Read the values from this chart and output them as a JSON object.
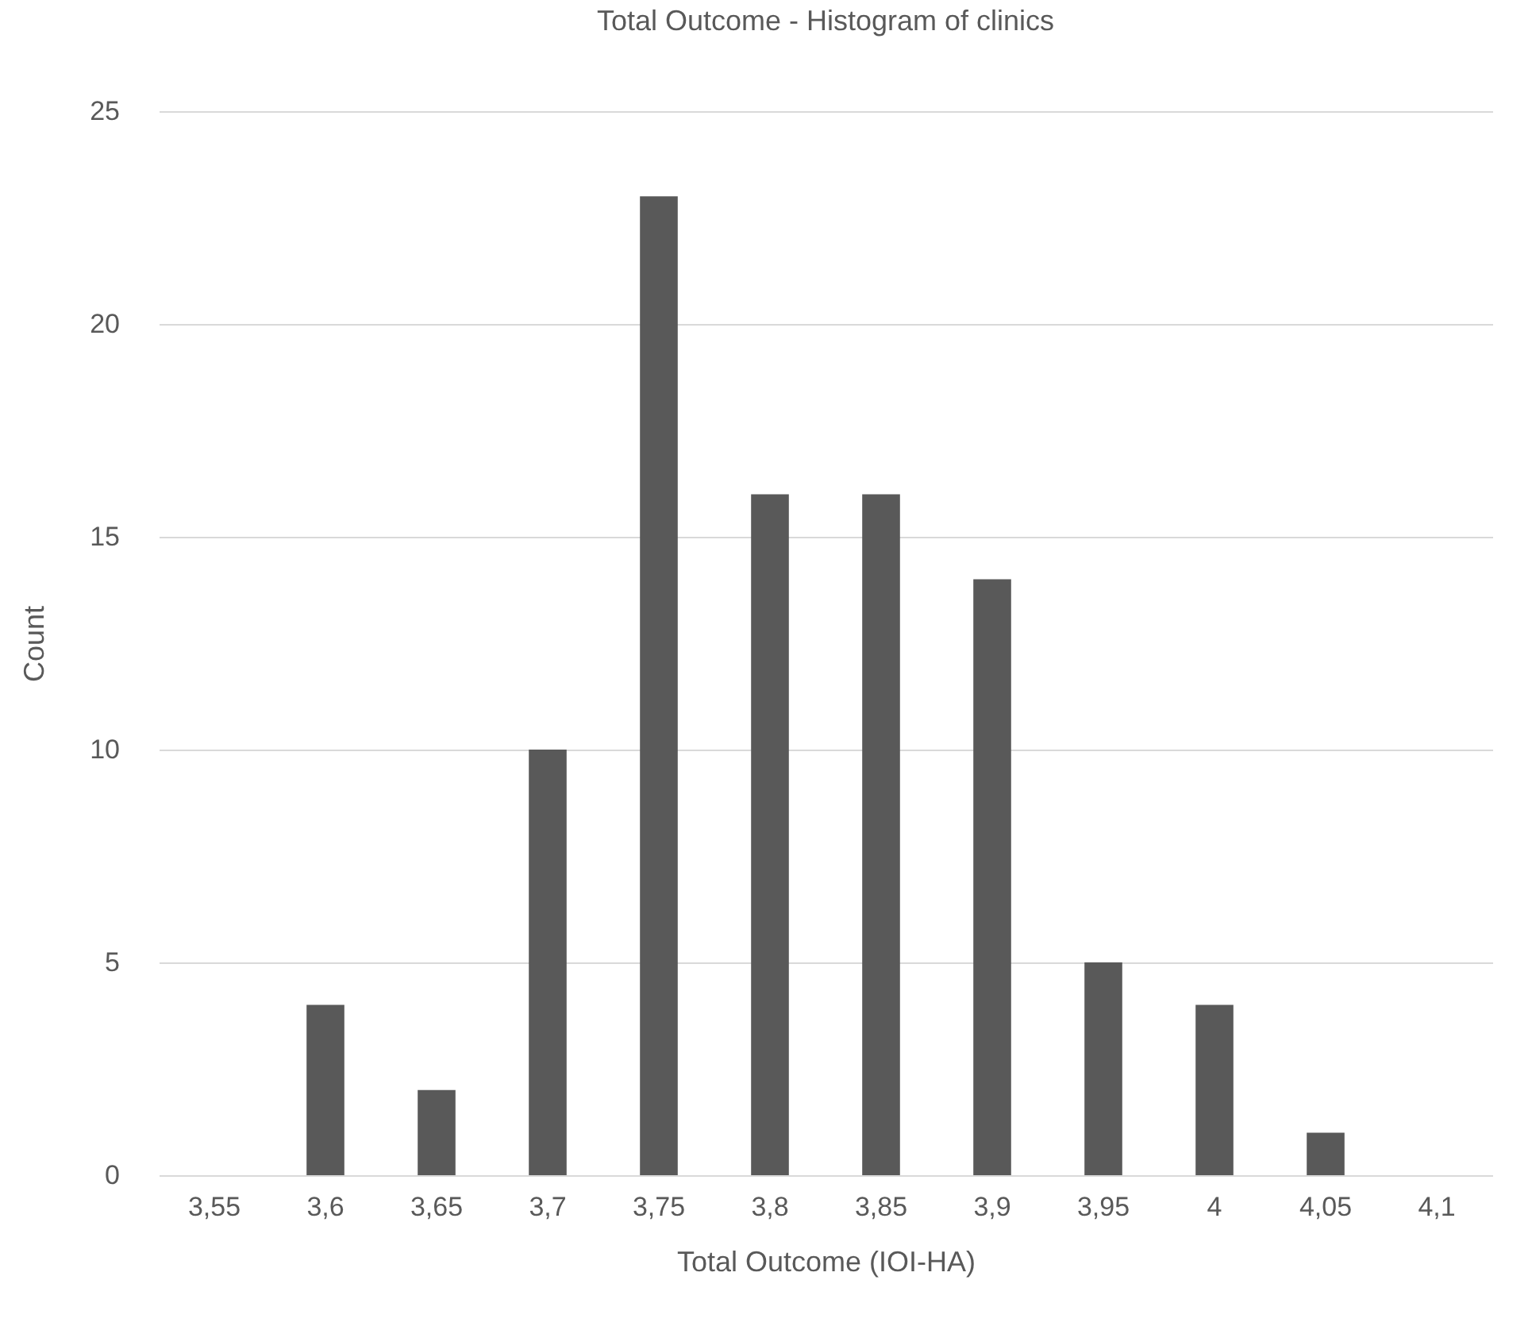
{
  "chart_data": {
    "type": "bar",
    "title": "Total Outcome - Histogram of clinics",
    "xlabel": "Total Outcome (IOI-HA)",
    "ylabel": "Count",
    "categories": [
      "3,55",
      "3,6",
      "3,65",
      "3,7",
      "3,75",
      "3,8",
      "3,85",
      "3,9",
      "3,95",
      "4",
      "4,05",
      "4,1"
    ],
    "values": [
      0,
      4,
      2,
      10,
      23,
      16,
      16,
      14,
      5,
      4,
      1,
      0
    ],
    "color": "#595959",
    "ylim": [
      0,
      25
    ],
    "yticks": [
      0,
      5,
      10,
      15,
      20,
      25
    ],
    "grid": "y"
  }
}
